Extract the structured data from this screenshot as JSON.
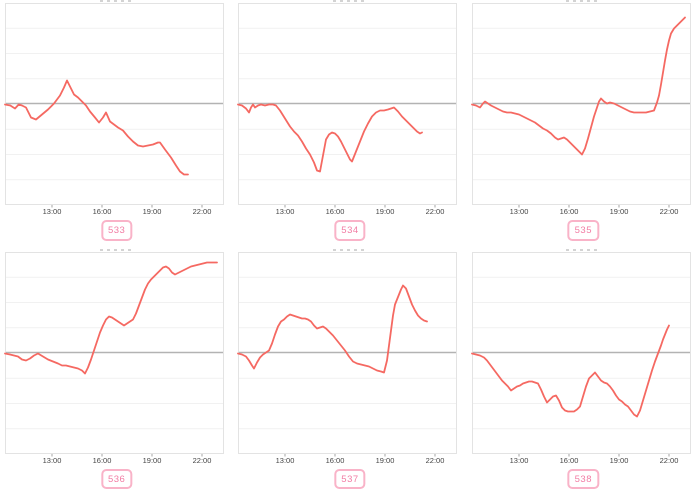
{
  "page": {
    "background": "#ffffff"
  },
  "colors": {
    "series_line": "#f56962",
    "reference_line": "#b3b3b3",
    "plot_border": "#e3e3e3",
    "grid_line": "#f1f1f1",
    "tick_mark": "#9a9a9a",
    "tick_text": "#454545",
    "badge_border": "#f9b3c8",
    "badge_text": "#f27da4",
    "title_remnant": "#c8c8c8"
  },
  "axis": {
    "tick_labels": [
      "13:00",
      "16:00",
      "19:00",
      "22:00"
    ],
    "tick_hours": [
      13,
      16,
      19,
      22
    ]
  },
  "chart_data": [
    {
      "type": "line",
      "label": "533",
      "x_unit": "time of day (hours)",
      "y_unit": "relative value (no y labels; baseline = 0)",
      "baseline": 0,
      "points": [
        [
          10.18,
          -1
        ],
        [
          10.5,
          -2
        ],
        [
          10.78,
          -5
        ],
        [
          11.0,
          -1
        ],
        [
          11.2,
          -2
        ],
        [
          11.44,
          -4
        ],
        [
          11.74,
          -14
        ],
        [
          12.04,
          -16
        ],
        [
          12.4,
          -11
        ],
        [
          12.76,
          -6
        ],
        [
          13.12,
          0
        ],
        [
          13.48,
          8
        ],
        [
          13.72,
          16
        ],
        [
          13.9,
          23
        ],
        [
          14.14,
          15
        ],
        [
          14.32,
          9
        ],
        [
          14.56,
          6
        ],
        [
          14.8,
          2
        ],
        [
          15.04,
          -2
        ],
        [
          15.28,
          -8
        ],
        [
          15.58,
          -14
        ],
        [
          15.82,
          -19
        ],
        [
          16.06,
          -14
        ],
        [
          16.24,
          -9
        ],
        [
          16.48,
          -18
        ],
        [
          16.72,
          -21
        ],
        [
          16.96,
          -24
        ],
        [
          17.26,
          -27
        ],
        [
          17.56,
          -33
        ],
        [
          17.86,
          -38
        ],
        [
          18.16,
          -42
        ],
        [
          18.46,
          -43
        ],
        [
          18.76,
          -42
        ],
        [
          19.06,
          -41
        ],
        [
          19.36,
          -39
        ],
        [
          19.48,
          -39
        ],
        [
          19.78,
          -46
        ],
        [
          20.14,
          -54
        ],
        [
          20.44,
          -62
        ],
        [
          20.68,
          -68
        ],
        [
          20.92,
          -71
        ],
        [
          21.16,
          -71
        ]
      ]
    },
    {
      "type": "line",
      "label": "534",
      "x_unit": "time of day (hours)",
      "y_unit": "relative value (no y labels; baseline = 0)",
      "baseline": 0,
      "points": [
        [
          10.18,
          -1
        ],
        [
          10.42,
          -2
        ],
        [
          10.66,
          -5
        ],
        [
          10.84,
          -9
        ],
        [
          10.96,
          -4
        ],
        [
          11.08,
          -1
        ],
        [
          11.2,
          -4
        ],
        [
          11.38,
          -2
        ],
        [
          11.56,
          -1
        ],
        [
          11.8,
          -2
        ],
        [
          12.04,
          -1
        ],
        [
          12.28,
          -1
        ],
        [
          12.46,
          -2
        ],
        [
          12.7,
          -7
        ],
        [
          13.0,
          -15
        ],
        [
          13.3,
          -23
        ],
        [
          13.54,
          -28
        ],
        [
          13.78,
          -32
        ],
        [
          14.02,
          -38
        ],
        [
          14.26,
          -45
        ],
        [
          14.5,
          -51
        ],
        [
          14.74,
          -59
        ],
        [
          14.92,
          -67
        ],
        [
          15.1,
          -68
        ],
        [
          15.28,
          -52
        ],
        [
          15.46,
          -36
        ],
        [
          15.64,
          -31
        ],
        [
          15.82,
          -29
        ],
        [
          16.0,
          -30
        ],
        [
          16.18,
          -33
        ],
        [
          16.36,
          -38
        ],
        [
          16.54,
          -44
        ],
        [
          16.72,
          -50
        ],
        [
          16.9,
          -56
        ],
        [
          17.02,
          -58
        ],
        [
          17.26,
          -48
        ],
        [
          17.5,
          -38
        ],
        [
          17.74,
          -28
        ],
        [
          17.98,
          -20
        ],
        [
          18.22,
          -13
        ],
        [
          18.46,
          -9
        ],
        [
          18.7,
          -7
        ],
        [
          18.94,
          -7
        ],
        [
          19.18,
          -6
        ],
        [
          19.36,
          -5
        ],
        [
          19.54,
          -4
        ],
        [
          19.78,
          -8
        ],
        [
          20.02,
          -13
        ],
        [
          20.26,
          -17
        ],
        [
          20.5,
          -21
        ],
        [
          20.74,
          -25
        ],
        [
          20.92,
          -28
        ],
        [
          21.1,
          -30
        ],
        [
          21.22,
          -29
        ]
      ]
    },
    {
      "type": "line",
      "label": "535",
      "x_unit": "time of day (hours)",
      "y_unit": "relative value (no y labels; baseline = 0)",
      "baseline": 0,
      "points": [
        [
          10.18,
          -1
        ],
        [
          10.42,
          -2
        ],
        [
          10.66,
          -4
        ],
        [
          10.84,
          0
        ],
        [
          10.96,
          2
        ],
        [
          11.14,
          0
        ],
        [
          11.32,
          -2
        ],
        [
          11.56,
          -4
        ],
        [
          11.8,
          -6
        ],
        [
          12.04,
          -8
        ],
        [
          12.28,
          -9
        ],
        [
          12.52,
          -9
        ],
        [
          12.76,
          -10
        ],
        [
          13.0,
          -11
        ],
        [
          13.24,
          -13
        ],
        [
          13.48,
          -15
        ],
        [
          13.72,
          -17
        ],
        [
          13.96,
          -19
        ],
        [
          14.2,
          -22
        ],
        [
          14.44,
          -25
        ],
        [
          14.68,
          -27
        ],
        [
          14.92,
          -30
        ],
        [
          15.16,
          -34
        ],
        [
          15.34,
          -36
        ],
        [
          15.52,
          -35
        ],
        [
          15.7,
          -34
        ],
        [
          15.88,
          -36
        ],
        [
          16.12,
          -40
        ],
        [
          16.36,
          -44
        ],
        [
          16.6,
          -48
        ],
        [
          16.78,
          -51
        ],
        [
          16.96,
          -45
        ],
        [
          17.14,
          -35
        ],
        [
          17.32,
          -24
        ],
        [
          17.5,
          -13
        ],
        [
          17.68,
          -4
        ],
        [
          17.8,
          2
        ],
        [
          17.92,
          5
        ],
        [
          18.1,
          2
        ],
        [
          18.28,
          0
        ],
        [
          18.46,
          1
        ],
        [
          18.7,
          0
        ],
        [
          18.94,
          -2
        ],
        [
          19.18,
          -4
        ],
        [
          19.42,
          -6
        ],
        [
          19.66,
          -8
        ],
        [
          19.9,
          -9
        ],
        [
          20.14,
          -9
        ],
        [
          20.38,
          -9
        ],
        [
          20.62,
          -9
        ],
        [
          20.86,
          -8
        ],
        [
          21.1,
          -7
        ],
        [
          21.28,
          1
        ],
        [
          21.4,
          8
        ],
        [
          21.52,
          19
        ],
        [
          21.64,
          31
        ],
        [
          21.76,
          43
        ],
        [
          21.88,
          54
        ],
        [
          22.0,
          63
        ],
        [
          22.12,
          70
        ],
        [
          22.3,
          75
        ],
        [
          22.48,
          78
        ],
        [
          22.66,
          81
        ],
        [
          22.84,
          84
        ],
        [
          22.96,
          86
        ]
      ]
    },
    {
      "type": "line",
      "label": "536",
      "x_unit": "time of day (hours)",
      "y_unit": "relative value (no y labels; baseline = 0)",
      "baseline": 0,
      "points": [
        [
          10.18,
          -1
        ],
        [
          10.48,
          -2
        ],
        [
          10.72,
          -3
        ],
        [
          10.96,
          -4
        ],
        [
          11.2,
          -7
        ],
        [
          11.44,
          -8
        ],
        [
          11.68,
          -6
        ],
        [
          11.92,
          -3
        ],
        [
          12.16,
          -1
        ],
        [
          12.46,
          -4
        ],
        [
          12.76,
          -7
        ],
        [
          13.06,
          -9
        ],
        [
          13.36,
          -11
        ],
        [
          13.6,
          -13
        ],
        [
          13.84,
          -13
        ],
        [
          14.08,
          -14
        ],
        [
          14.32,
          -15
        ],
        [
          14.56,
          -16
        ],
        [
          14.8,
          -18
        ],
        [
          14.98,
          -21
        ],
        [
          15.16,
          -15
        ],
        [
          15.34,
          -7
        ],
        [
          15.52,
          2
        ],
        [
          15.7,
          11
        ],
        [
          15.88,
          20
        ],
        [
          16.06,
          27
        ],
        [
          16.24,
          33
        ],
        [
          16.42,
          36
        ],
        [
          16.6,
          35
        ],
        [
          16.78,
          33
        ],
        [
          16.96,
          31
        ],
        [
          17.14,
          29
        ],
        [
          17.32,
          27
        ],
        [
          17.5,
          29
        ],
        [
          17.68,
          31
        ],
        [
          17.86,
          33
        ],
        [
          18.04,
          39
        ],
        [
          18.22,
          47
        ],
        [
          18.4,
          55
        ],
        [
          18.58,
          63
        ],
        [
          18.76,
          69
        ],
        [
          18.94,
          73
        ],
        [
          19.12,
          76
        ],
        [
          19.3,
          79
        ],
        [
          19.48,
          82
        ],
        [
          19.66,
          85
        ],
        [
          19.84,
          86
        ],
        [
          20.02,
          84
        ],
        [
          20.2,
          80
        ],
        [
          20.38,
          78
        ],
        [
          20.62,
          80
        ],
        [
          20.86,
          82
        ],
        [
          21.1,
          84
        ],
        [
          21.34,
          86
        ],
        [
          21.58,
          87
        ],
        [
          21.82,
          88
        ],
        [
          22.06,
          89
        ],
        [
          22.3,
          90
        ],
        [
          22.48,
          90
        ],
        [
          22.78,
          90
        ],
        [
          22.9,
          90
        ]
      ]
    },
    {
      "type": "line",
      "label": "537",
      "x_unit": "time of day (hours)",
      "y_unit": "relative value (no y labels; baseline = 0)",
      "baseline": 0,
      "points": [
        [
          10.18,
          -1
        ],
        [
          10.42,
          -2
        ],
        [
          10.66,
          -4
        ],
        [
          10.84,
          -8
        ],
        [
          11.02,
          -13
        ],
        [
          11.14,
          -16
        ],
        [
          11.32,
          -10
        ],
        [
          11.5,
          -5
        ],
        [
          11.68,
          -2
        ],
        [
          11.86,
          0
        ],
        [
          12.04,
          2
        ],
        [
          12.22,
          9
        ],
        [
          12.4,
          18
        ],
        [
          12.58,
          26
        ],
        [
          12.76,
          31
        ],
        [
          12.94,
          33
        ],
        [
          13.12,
          36
        ],
        [
          13.3,
          38
        ],
        [
          13.48,
          37
        ],
        [
          13.66,
          36
        ],
        [
          13.84,
          35
        ],
        [
          14.02,
          34
        ],
        [
          14.2,
          34
        ],
        [
          14.38,
          33
        ],
        [
          14.56,
          31
        ],
        [
          14.74,
          27
        ],
        [
          14.92,
          24
        ],
        [
          15.1,
          25
        ],
        [
          15.28,
          26
        ],
        [
          15.46,
          24
        ],
        [
          15.64,
          21
        ],
        [
          15.88,
          17
        ],
        [
          16.12,
          12
        ],
        [
          16.36,
          7
        ],
        [
          16.6,
          2
        ],
        [
          16.84,
          -4
        ],
        [
          17.08,
          -9
        ],
        [
          17.32,
          -11
        ],
        [
          17.56,
          -12
        ],
        [
          17.8,
          -13
        ],
        [
          18.04,
          -14
        ],
        [
          18.28,
          -16
        ],
        [
          18.52,
          -18
        ],
        [
          18.76,
          -19
        ],
        [
          18.94,
          -20
        ],
        [
          19.12,
          -8
        ],
        [
          19.24,
          7
        ],
        [
          19.36,
          22
        ],
        [
          19.48,
          37
        ],
        [
          19.6,
          48
        ],
        [
          19.72,
          53
        ],
        [
          19.84,
          58
        ],
        [
          19.96,
          63
        ],
        [
          20.08,
          67
        ],
        [
          20.26,
          64
        ],
        [
          20.44,
          56
        ],
        [
          20.62,
          48
        ],
        [
          20.8,
          42
        ],
        [
          20.98,
          37
        ],
        [
          21.16,
          34
        ],
        [
          21.34,
          32
        ],
        [
          21.52,
          31
        ]
      ]
    },
    {
      "type": "line",
      "label": "538",
      "x_unit": "time of day (hours)",
      "y_unit": "relative value (no y labels; baseline = 0)",
      "baseline": 0,
      "points": [
        [
          10.18,
          -1
        ],
        [
          10.42,
          -2
        ],
        [
          10.66,
          -3
        ],
        [
          10.9,
          -5
        ],
        [
          11.08,
          -8
        ],
        [
          11.26,
          -12
        ],
        [
          11.44,
          -16
        ],
        [
          11.62,
          -20
        ],
        [
          11.8,
          -24
        ],
        [
          11.98,
          -28
        ],
        [
          12.16,
          -31
        ],
        [
          12.34,
          -34
        ],
        [
          12.52,
          -38
        ],
        [
          12.7,
          -36
        ],
        [
          12.88,
          -34
        ],
        [
          13.06,
          -33
        ],
        [
          13.24,
          -31
        ],
        [
          13.42,
          -30
        ],
        [
          13.6,
          -29
        ],
        [
          13.78,
          -29
        ],
        [
          13.96,
          -30
        ],
        [
          14.14,
          -31
        ],
        [
          14.32,
          -37
        ],
        [
          14.5,
          -44
        ],
        [
          14.68,
          -50
        ],
        [
          14.86,
          -47
        ],
        [
          15.04,
          -44
        ],
        [
          15.22,
          -43
        ],
        [
          15.4,
          -48
        ],
        [
          15.58,
          -55
        ],
        [
          15.76,
          -58
        ],
        [
          15.94,
          -59
        ],
        [
          16.12,
          -59
        ],
        [
          16.3,
          -59
        ],
        [
          16.48,
          -57
        ],
        [
          16.66,
          -54
        ],
        [
          16.84,
          -44
        ],
        [
          17.02,
          -34
        ],
        [
          17.2,
          -26
        ],
        [
          17.38,
          -23
        ],
        [
          17.56,
          -20
        ],
        [
          17.74,
          -24
        ],
        [
          17.92,
          -28
        ],
        [
          18.1,
          -30
        ],
        [
          18.28,
          -31
        ],
        [
          18.46,
          -34
        ],
        [
          18.64,
          -38
        ],
        [
          18.82,
          -43
        ],
        [
          19.0,
          -47
        ],
        [
          19.18,
          -49
        ],
        [
          19.36,
          -52
        ],
        [
          19.54,
          -54
        ],
        [
          19.72,
          -58
        ],
        [
          19.9,
          -62
        ],
        [
          20.08,
          -64
        ],
        [
          20.26,
          -58
        ],
        [
          20.44,
          -48
        ],
        [
          20.62,
          -38
        ],
        [
          20.8,
          -28
        ],
        [
          20.98,
          -18
        ],
        [
          21.16,
          -9
        ],
        [
          21.34,
          -1
        ],
        [
          21.52,
          7
        ],
        [
          21.64,
          13
        ],
        [
          21.76,
          18
        ],
        [
          21.88,
          23
        ],
        [
          22.0,
          27
        ]
      ]
    }
  ]
}
